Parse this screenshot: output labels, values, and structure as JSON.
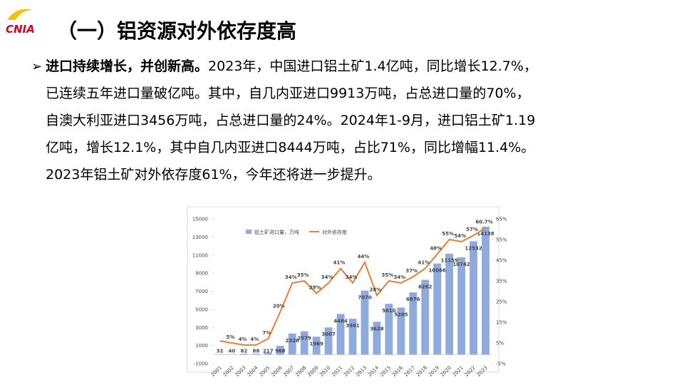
{
  "logo": "CNIA",
  "title": "（一）铝资源对外依存度高",
  "bullet": {
    "lead": "进口持续增长，并创新高。",
    "lines": [
      "2023年，中国进口铝土矿1.4亿吨，同比增长12.7%，",
      "已连续五年进口量破亿吨。其中，自几内亚进口9913万吨，占总进口量的70%，",
      "自澳大利亚进口3456万吨，占总进口量的24%。2024年1-9月，进口铝土矿1.19",
      "亿吨，增长12.1%，其中自几内亚进口8444万吨，占比71%，同比增幅11.4%。",
      "2023年铝土矿对外依存度61%，今年还将进一步提升。"
    ]
  },
  "chart_data": {
    "type": "bar_line",
    "categories": [
      "2001",
      "2002",
      "2003",
      "2004",
      "2005",
      "2006",
      "2007",
      "2008",
      "2009",
      "2010",
      "2011",
      "2012",
      "2013",
      "2014",
      "2015",
      "2016",
      "2017",
      "2018",
      "2019",
      "2020",
      "2021",
      "2022",
      "2023"
    ],
    "series": [
      {
        "name": "铝土矿进口量，万吨",
        "type": "bar",
        "color": "#8faadc",
        "values": [
          32,
          40,
          82,
          88,
          217,
          968,
          2326,
          2579,
          1969,
          3007,
          4484,
          3961,
          7070,
          3628,
          5610,
          5205,
          6876,
          8262,
          10066,
          11159,
          10742,
          12532,
          14138
        ]
      },
      {
        "name": "对外依存度",
        "type": "line",
        "axis": "y2",
        "color": "#ed7d31",
        "values": [
          6,
          5,
          4,
          4,
          7,
          20,
          34,
          35,
          29,
          34,
          41,
          34,
          44,
          28,
          35,
          34,
          37,
          41,
          48,
          55,
          54,
          57,
          60.7
        ],
        "value_labels": [
          null,
          "5%",
          "4%",
          "4%",
          "7%",
          "20%",
          "34%",
          "35%",
          "29%",
          "34%",
          "41%",
          "34%",
          "44%",
          "28%",
          "35%",
          "34%",
          "37%",
          "41%",
          "48%",
          "55%",
          "54%",
          "57%",
          "60.7%"
        ]
      }
    ],
    "ylim": [
      -1000,
      15000
    ],
    "yticks": [
      -1000,
      1000,
      3000,
      5000,
      7000,
      9000,
      11000,
      13000,
      15000
    ],
    "y2lim": [
      -5,
      65
    ],
    "y2ticks": [
      {
        "value": -5,
        "label": "-5%"
      },
      {
        "value": 5,
        "label": "5%"
      },
      {
        "value": 15,
        "label": "15%"
      },
      {
        "value": 25,
        "label": "25%"
      },
      {
        "value": 35,
        "label": "35%"
      },
      {
        "value": 45,
        "label": "45%"
      },
      {
        "value": 55,
        "label": "55%"
      },
      {
        "value": 65,
        "label": "65%"
      }
    ],
    "legend": "top-left"
  }
}
